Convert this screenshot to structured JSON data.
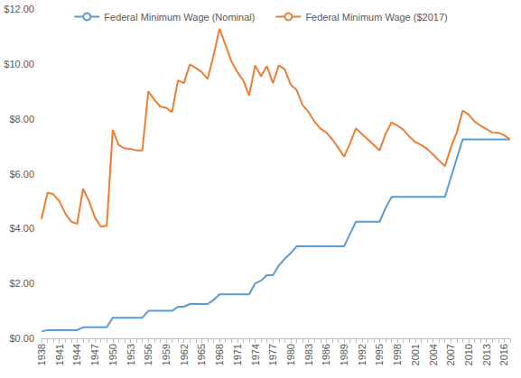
{
  "chart_data": {
    "type": "line",
    "categories": [
      "1938",
      null,
      null,
      "1941",
      null,
      null,
      "1944",
      null,
      null,
      "1947",
      null,
      null,
      "1950",
      null,
      null,
      "1953",
      null,
      null,
      "1956",
      null,
      null,
      "1959",
      null,
      null,
      "1962",
      null,
      null,
      "1965",
      null,
      null,
      "1968",
      null,
      null,
      "1971",
      null,
      null,
      "1974",
      null,
      null,
      "1977",
      null,
      null,
      "1980",
      null,
      null,
      "1983",
      null,
      null,
      "1986",
      null,
      null,
      "1989",
      null,
      null,
      "1992",
      null,
      null,
      "1995",
      null,
      null,
      "1998",
      null,
      null,
      "2001",
      null,
      null,
      "2004",
      null,
      null,
      "2007",
      null,
      null,
      "2010",
      null,
      null,
      "2013",
      null,
      null,
      "2016",
      null
    ],
    "series": [
      {
        "name": "Federal Minimum Wage (Nominal)",
        "color": "#5b9bd5",
        "marker": "none",
        "line_style": "solid",
        "values": [
          0.25,
          0.3,
          0.3,
          0.3,
          0.3,
          0.3,
          0.3,
          0.4,
          0.4,
          0.4,
          0.4,
          0.4,
          0.75,
          0.75,
          0.75,
          0.75,
          0.75,
          0.75,
          1.0,
          1.0,
          1.0,
          1.0,
          1.0,
          1.15,
          1.15,
          1.25,
          1.25,
          1.25,
          1.25,
          1.4,
          1.6,
          1.6,
          1.6,
          1.6,
          1.6,
          1.6,
          2.0,
          2.1,
          2.3,
          2.3,
          2.65,
          2.9,
          3.1,
          3.35,
          3.35,
          3.35,
          3.35,
          3.35,
          3.35,
          3.35,
          3.35,
          3.35,
          3.8,
          4.25,
          4.25,
          4.25,
          4.25,
          4.25,
          4.75,
          5.15,
          5.15,
          5.15,
          5.15,
          5.15,
          5.15,
          5.15,
          5.15,
          5.15,
          5.15,
          5.85,
          6.55,
          7.25,
          7.25,
          7.25,
          7.25,
          7.25,
          7.25,
          7.25,
          7.25,
          7.25
        ]
      },
      {
        "name": "Federal Minimum Wage ($2017)",
        "color": "#ed7d31",
        "marker": "none",
        "line_style": "solid",
        "values": [
          4.35,
          5.3,
          5.25,
          5.0,
          4.55,
          4.25,
          4.17,
          5.45,
          5.0,
          4.4,
          4.07,
          4.1,
          7.6,
          7.05,
          6.92,
          6.9,
          6.85,
          6.85,
          9.0,
          8.7,
          8.45,
          8.4,
          8.25,
          9.4,
          9.3,
          9.98,
          9.85,
          9.7,
          9.45,
          10.3,
          11.28,
          10.7,
          10.1,
          9.7,
          9.4,
          8.85,
          9.95,
          9.55,
          9.92,
          9.3,
          9.95,
          9.8,
          9.25,
          9.05,
          8.5,
          8.25,
          7.9,
          7.65,
          7.5,
          7.25,
          6.95,
          6.62,
          7.1,
          7.65,
          7.45,
          7.25,
          7.05,
          6.85,
          7.45,
          7.87,
          7.75,
          7.6,
          7.35,
          7.15,
          7.05,
          6.9,
          6.7,
          6.48,
          6.27,
          6.95,
          7.5,
          8.3,
          8.15,
          7.9,
          7.75,
          7.62,
          7.5,
          7.49,
          7.4,
          7.25
        ]
      }
    ],
    "ylim": [
      0,
      12
    ],
    "yticks": [
      {
        "value": 0,
        "label": "$0.00"
      },
      {
        "value": 2,
        "label": "$2.00"
      },
      {
        "value": 4,
        "label": "$4.00"
      },
      {
        "value": 6,
        "label": "$6.00"
      },
      {
        "value": 8,
        "label": "$8.00"
      },
      {
        "value": 10,
        "label": "$10.00"
      },
      {
        "value": 12,
        "label": "$12.00"
      }
    ],
    "grid": false,
    "legend": "top"
  }
}
